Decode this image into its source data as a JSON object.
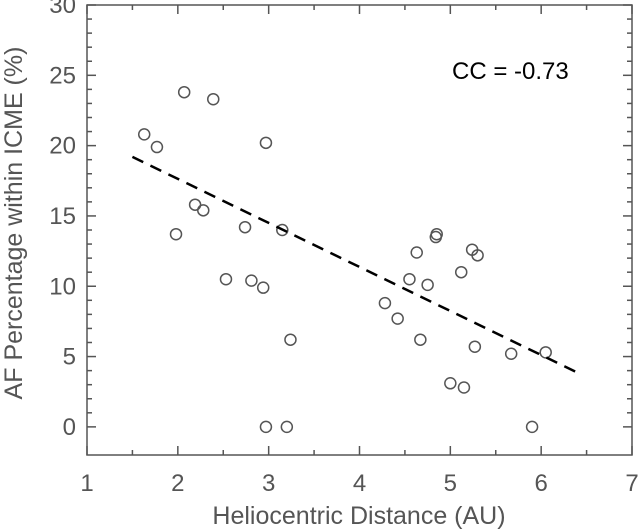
{
  "chart_data": {
    "type": "scatter",
    "xlabel": "Heliocentric Distance (AU)",
    "ylabel": "AF Percentage within ICME (%)",
    "xlim": [
      1,
      7
    ],
    "ylim": [
      -2,
      30
    ],
    "xticks": [
      "1",
      "2",
      "3",
      "4",
      "5",
      "6",
      "7"
    ],
    "yticks": [
      "0",
      "5",
      "10",
      "15",
      "20",
      "25",
      "30"
    ],
    "annotation": "CC = -0.73",
    "grid": false,
    "points": [
      {
        "x": 1.63,
        "y": 20.8
      },
      {
        "x": 1.77,
        "y": 19.9
      },
      {
        "x": 1.98,
        "y": 13.7
      },
      {
        "x": 2.07,
        "y": 23.8
      },
      {
        "x": 2.19,
        "y": 15.8
      },
      {
        "x": 2.28,
        "y": 15.4
      },
      {
        "x": 2.39,
        "y": 23.3
      },
      {
        "x": 2.53,
        "y": 10.5
      },
      {
        "x": 2.74,
        "y": 14.2
      },
      {
        "x": 2.81,
        "y": 10.4
      },
      {
        "x": 2.94,
        "y": 9.9
      },
      {
        "x": 2.97,
        "y": 20.2
      },
      {
        "x": 2.97,
        "y": 0.0
      },
      {
        "x": 3.15,
        "y": 14.0
      },
      {
        "x": 3.2,
        "y": 0.0
      },
      {
        "x": 3.24,
        "y": 6.2
      },
      {
        "x": 4.28,
        "y": 8.8
      },
      {
        "x": 4.42,
        "y": 7.7
      },
      {
        "x": 4.55,
        "y": 10.5
      },
      {
        "x": 4.63,
        "y": 12.4
      },
      {
        "x": 4.67,
        "y": 6.2
      },
      {
        "x": 4.75,
        "y": 10.1
      },
      {
        "x": 4.84,
        "y": 13.5
      },
      {
        "x": 4.85,
        "y": 13.7
      },
      {
        "x": 5.0,
        "y": 3.1
      },
      {
        "x": 5.12,
        "y": 11.0
      },
      {
        "x": 5.15,
        "y": 2.8
      },
      {
        "x": 5.24,
        "y": 12.6
      },
      {
        "x": 5.27,
        "y": 5.7
      },
      {
        "x": 5.3,
        "y": 12.2
      },
      {
        "x": 5.67,
        "y": 5.2
      },
      {
        "x": 5.9,
        "y": 0.0
      },
      {
        "x": 6.05,
        "y": 5.3
      }
    ],
    "fit_line": {
      "style": "dashed",
      "x": [
        1.5,
        6.45
      ],
      "y": [
        19.2,
        3.7
      ]
    },
    "colors": {
      "marker_stroke": "#555555",
      "fit_line": "#000000",
      "axes": "#555555",
      "annotation": "#000000"
    }
  }
}
